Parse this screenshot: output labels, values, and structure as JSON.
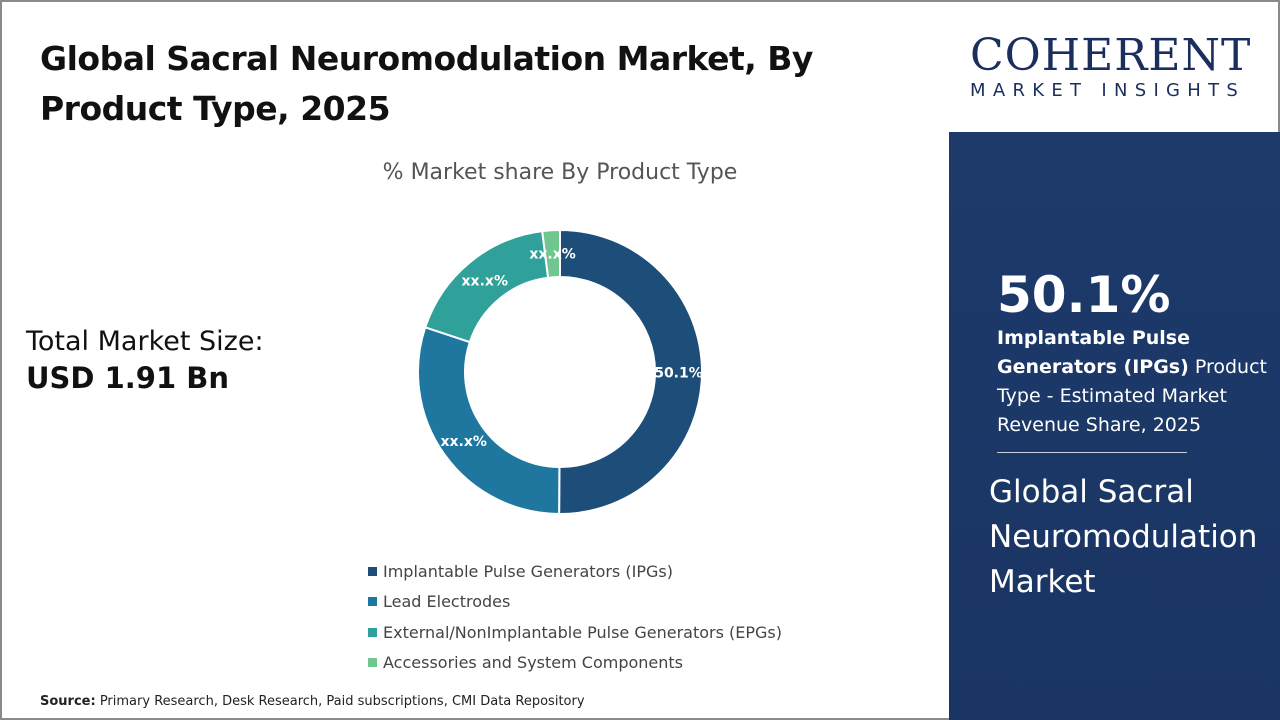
{
  "title": "Global Sacral Neuromodulation Market, By Product Type, 2025",
  "total": {
    "label": "Total Market Size:",
    "value": "USD 1.91 Bn"
  },
  "logo": {
    "name": "COHERENT",
    "tagline": "MARKET INSIGHTS"
  },
  "side": {
    "percent": "50.1%",
    "desc_bold": "Implantable Pulse Generators (IPGs)",
    "desc_rest": " Product Type - Estimated Market Revenue Share, 2025",
    "market": "Global Sacral Neuromodulation Market"
  },
  "source": {
    "label": "Source:",
    "text": " Primary Research, Desk Research, Paid subscriptions, CMI Data Repository"
  },
  "chart_data": {
    "type": "pie",
    "title": "% Market share By Product Type",
    "categories": [
      "Implantable Pulse Generators (IPGs)",
      "Lead Electrodes",
      "External/NonImplantable Pulse Generators (EPGs)",
      "Accessories and System Components"
    ],
    "values": [
      50.1,
      30.0,
      17.9,
      2.0
    ],
    "data_labels": [
      "50.1%",
      "xx.x%",
      "xx.x%",
      "xx.x%"
    ],
    "colors": [
      "#1d4e79",
      "#1f77a0",
      "#2fa19a",
      "#6fc68f"
    ],
    "legend": "bottom",
    "donut": true
  }
}
